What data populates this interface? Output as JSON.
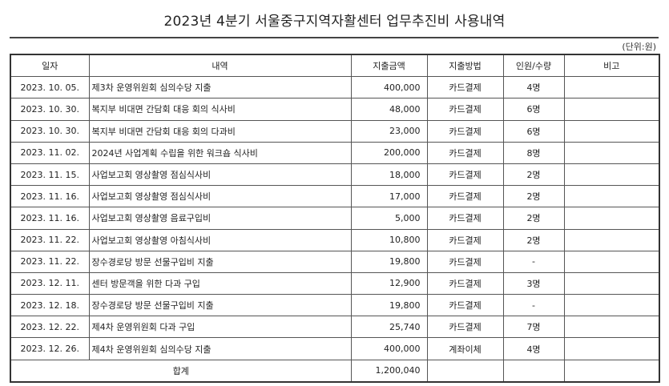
{
  "document": {
    "title": "2023년 4분기 서울중구지역자활센터 업무추진비 사용내역",
    "unit": "(단위:원)"
  },
  "table": {
    "headers": [
      "일자",
      "내역",
      "지출금액",
      "지출방법",
      "인원/수량",
      "비고"
    ],
    "rows": [
      {
        "date": "2023. 10. 05.",
        "desc": "제3차 운영위원회 심의수당 지출",
        "amount": "400,000",
        "method": "카드결제",
        "count": "4명",
        "note": ""
      },
      {
        "date": "2023. 10. 30.",
        "desc": "복지부 비대면 간담회 대응 회의 식사비",
        "amount": "48,000",
        "method": "카드결제",
        "count": "6명",
        "note": ""
      },
      {
        "date": "2023. 10. 30.",
        "desc": "복지부 비대면 간담회 대응 회의 다과비",
        "amount": "23,000",
        "method": "카드결제",
        "count": "6명",
        "note": ""
      },
      {
        "date": "2023. 11. 02.",
        "desc": "2024년 사업계획 수립을 위한 워크숍 식사비",
        "amount": "200,000",
        "method": "카드결제",
        "count": "8명",
        "note": ""
      },
      {
        "date": "2023. 11. 15.",
        "desc": "사업보고회 영상촬영 점심식사비",
        "amount": "18,000",
        "method": "카드결제",
        "count": "2명",
        "note": ""
      },
      {
        "date": "2023. 11. 16.",
        "desc": "사업보고회 영상촬영 점심식사비",
        "amount": "17,000",
        "method": "카드결제",
        "count": "2명",
        "note": ""
      },
      {
        "date": "2023. 11. 16.",
        "desc": "사업보고회 영상촬영 음료구입비",
        "amount": "5,000",
        "method": "카드결제",
        "count": "2명",
        "note": ""
      },
      {
        "date": "2023. 11. 22.",
        "desc": "사업보고회 영상촬영 아침식사비",
        "amount": "10,800",
        "method": "카드결제",
        "count": "2명",
        "note": ""
      },
      {
        "date": "2023. 11. 22.",
        "desc": "장수경로당 방문 선물구입비 지출",
        "amount": "19,800",
        "method": "카드결제",
        "count": "-",
        "note": ""
      },
      {
        "date": "2023. 12. 11.",
        "desc": "센터 방문객을 위한 다과 구입",
        "amount": "12,900",
        "method": "카드결제",
        "count": "3명",
        "note": ""
      },
      {
        "date": "2023. 12. 18.",
        "desc": "장수경로당 방문 선물구입비 지출",
        "amount": "19,800",
        "method": "카드결제",
        "count": "-",
        "note": ""
      },
      {
        "date": "2023. 12. 22.",
        "desc": "제4차 운영위원회 다과 구입",
        "amount": "25,740",
        "method": "카드결제",
        "count": "7명",
        "note": ""
      },
      {
        "date": "2023. 12. 26.",
        "desc": "제4차 운영위원회 심의수당 지출",
        "amount": "400,000",
        "method": "계좌이체",
        "count": "4명",
        "note": ""
      }
    ],
    "total": {
      "label": "합계",
      "amount": "1,200,040"
    }
  }
}
